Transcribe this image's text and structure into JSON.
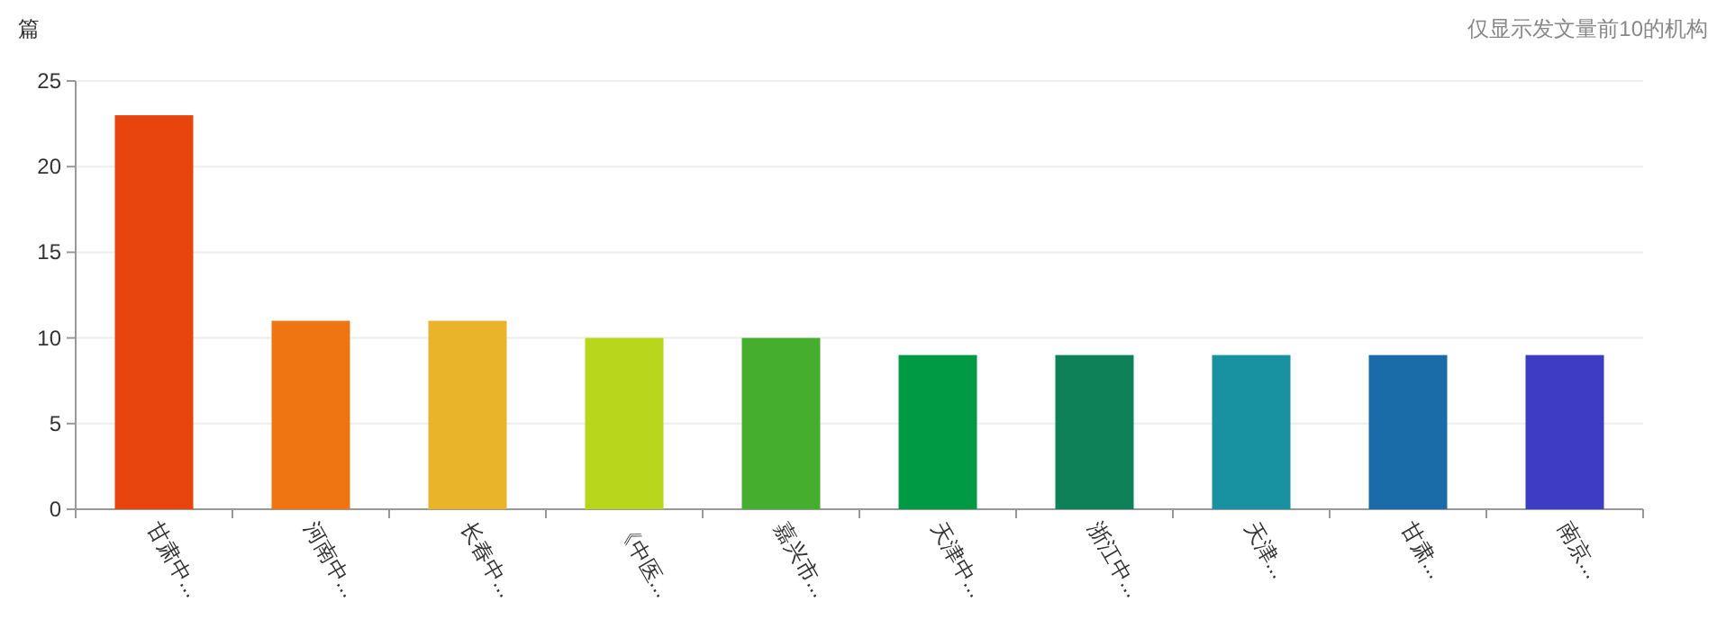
{
  "chart_data": {
    "type": "bar",
    "ylabel": "篇",
    "annotations": [
      "仅显示发文量前10的机构"
    ],
    "categories": [
      "甘肃中...",
      "河南中...",
      "长春中...",
      "《中医...",
      "嘉兴市...",
      "天津中...",
      "浙江中...",
      "天津...",
      "甘肃...",
      "南京..."
    ],
    "values": [
      23,
      11,
      11,
      10,
      10,
      9,
      9,
      9,
      9,
      9
    ],
    "colors": [
      "#e8450e",
      "#ee7512",
      "#e9b42a",
      "#b8d61c",
      "#45ae2f",
      "#009a44",
      "#0f8158",
      "#1891a0",
      "#1a6ca8",
      "#3d3cc3"
    ],
    "ylim": [
      0,
      25
    ],
    "yticks": [
      0,
      5,
      10,
      15,
      20,
      25
    ],
    "grid": "y"
  }
}
